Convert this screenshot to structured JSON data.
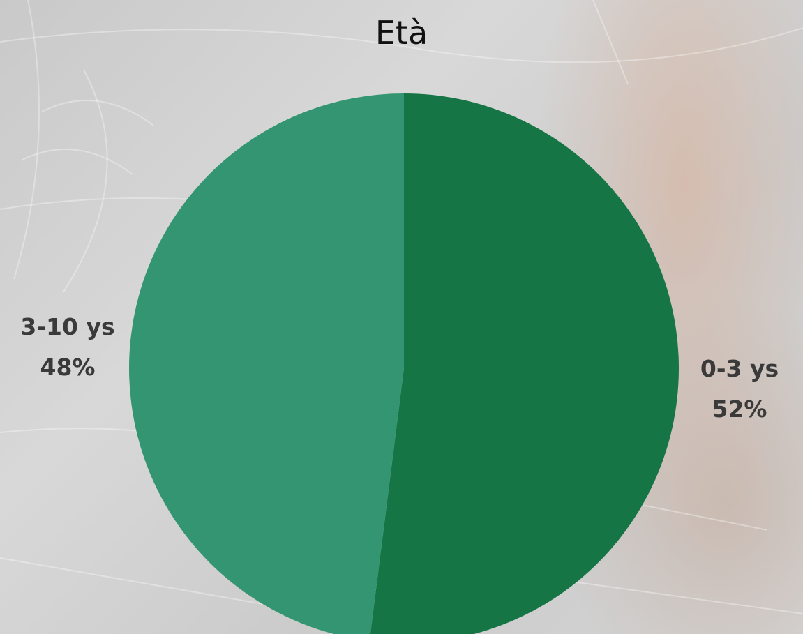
{
  "chart_data": {
    "type": "pie",
    "title": "Età",
    "slices": [
      {
        "label": "0-3 ys",
        "value": 52,
        "display": "52%",
        "color": "#167544"
      },
      {
        "label": "3-10 ys",
        "value": 48,
        "display": "48%",
        "color": "#339571"
      }
    ]
  }
}
